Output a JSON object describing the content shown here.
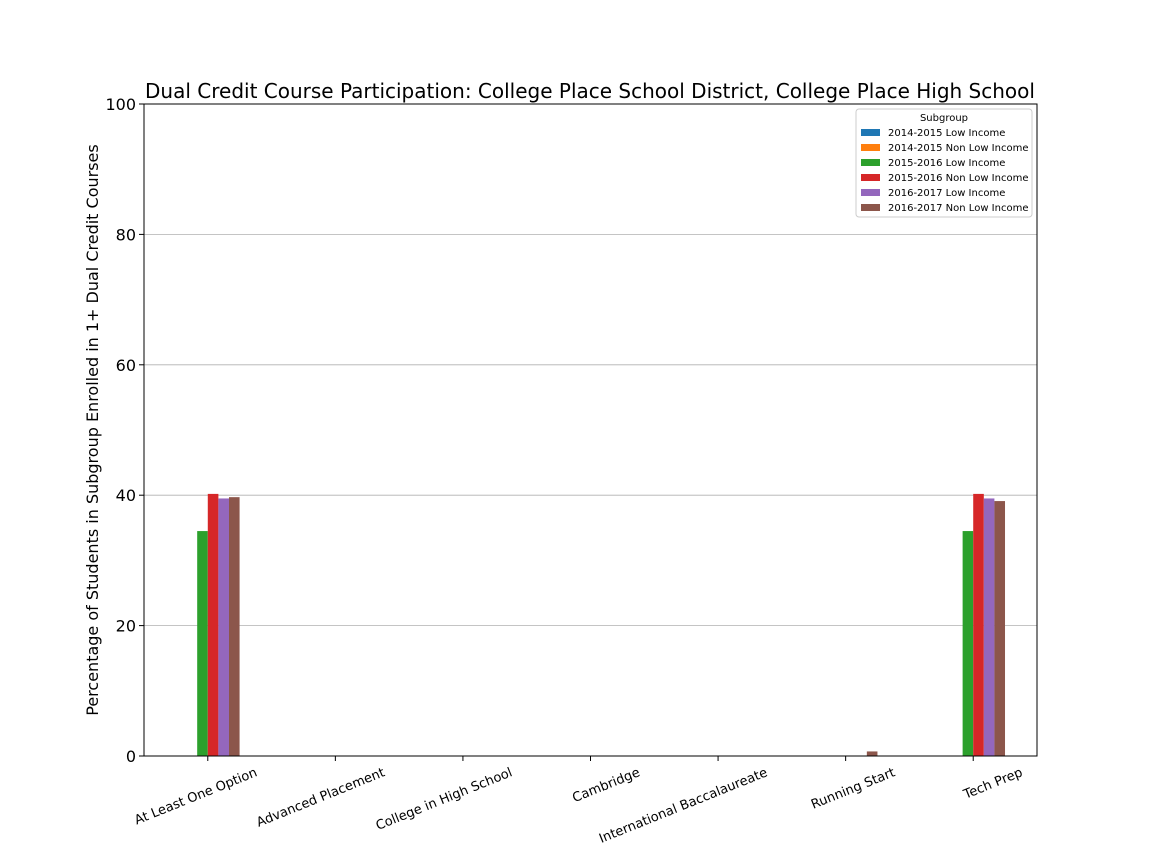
{
  "chart_data": {
    "type": "bar",
    "title": "Dual Credit Course Participation: College Place School District, College Place High School",
    "xlabel": "",
    "ylabel": "Percentage of Students in Subgroup Enrolled in 1+ Dual Credit Courses",
    "ylim": [
      0,
      100
    ],
    "yticks": [
      "0",
      "20",
      "40",
      "60",
      "80",
      "100"
    ],
    "grid": "horizontal",
    "legend": {
      "title": "Subgroup",
      "placement": "top-right"
    },
    "categories": [
      "At Least One Option",
      "Advanced Placement",
      "College in High School",
      "Cambridge",
      "International Baccalaureate",
      "Running Start",
      "Tech Prep"
    ],
    "series": [
      {
        "name": "2014-2015 Low Income",
        "color": "#1f77b4",
        "values": [
          0,
          0,
          0,
          0,
          0,
          0,
          0
        ]
      },
      {
        "name": "2014-2015 Non Low Income",
        "color": "#ff7f0e",
        "values": [
          0,
          0,
          0,
          0,
          0,
          0,
          0
        ]
      },
      {
        "name": "2015-2016 Low Income",
        "color": "#2ca02c",
        "values": [
          34.5,
          0,
          0,
          0,
          0,
          0,
          34.5
        ]
      },
      {
        "name": "2015-2016 Non Low Income",
        "color": "#d62728",
        "values": [
          40.2,
          0,
          0,
          0,
          0,
          0,
          40.2
        ]
      },
      {
        "name": "2016-2017 Low Income",
        "color": "#9467bd",
        "values": [
          39.5,
          0,
          0,
          0,
          0,
          0,
          39.5
        ]
      },
      {
        "name": "2016-2017 Non Low Income",
        "color": "#8c564b",
        "values": [
          39.7,
          0,
          0,
          0,
          0,
          0.7,
          39.1
        ]
      }
    ]
  }
}
